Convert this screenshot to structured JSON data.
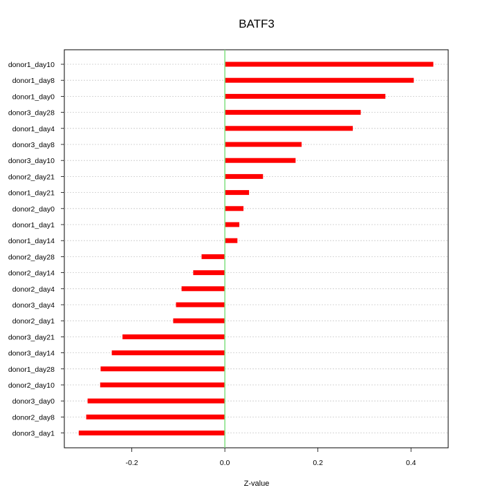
{
  "chart_data": {
    "type": "bar",
    "orientation": "horizontal",
    "title": "BATF3",
    "xlabel": "Z-value",
    "ylabel": "",
    "categories": [
      "donor1_day10",
      "donor1_day8",
      "donor1_day0",
      "donor3_day28",
      "donor1_day4",
      "donor3_day8",
      "donor3_day10",
      "donor2_day21",
      "donor1_day21",
      "donor2_day0",
      "donor1_day1",
      "donor1_day14",
      "donor2_day28",
      "donor2_day14",
      "donor2_day4",
      "donor3_day4",
      "donor2_day1",
      "donor3_day21",
      "donor3_day14",
      "donor1_day28",
      "donor2_day10",
      "donor3_day0",
      "donor2_day8",
      "donor3_day1"
    ],
    "values": [
      0.448,
      0.406,
      0.345,
      0.292,
      0.275,
      0.165,
      0.152,
      0.082,
      0.052,
      0.04,
      0.031,
      0.027,
      -0.05,
      -0.068,
      -0.093,
      -0.105,
      -0.111,
      -0.22,
      -0.243,
      -0.267,
      -0.268,
      -0.295,
      -0.298,
      -0.314
    ],
    "xticks": [
      "-0.2",
      "0.0",
      "0.2",
      "0.4"
    ],
    "xtick_values": [
      -0.2,
      0.0,
      0.2,
      0.4
    ],
    "xlim": [
      -0.345,
      0.48
    ],
    "grid": "horizontal dotted",
    "bar_color": "#ff0000",
    "zero_line_color": "#7fe07f"
  }
}
